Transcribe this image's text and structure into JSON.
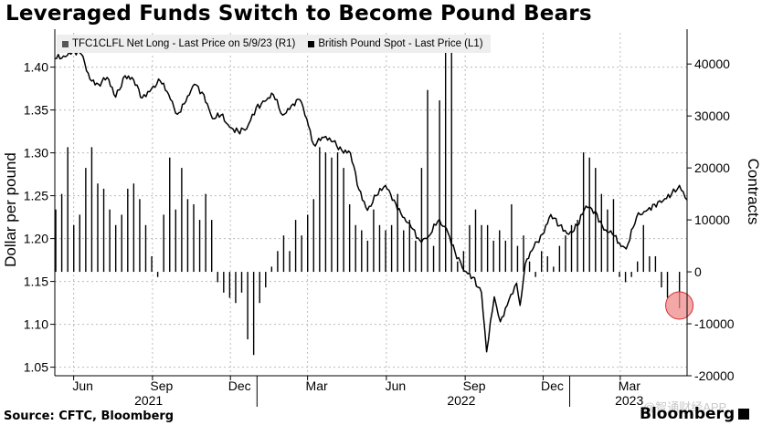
{
  "title": "Leveraged Funds Switch to Become Pound Bears",
  "source": "Source: CFTC, Bloomberg",
  "logo": "Bloomberg",
  "watermark": "@智通财经APP",
  "legend": [
    {
      "label": "TFC1CLFL Net Long - Last Price on 5/9/23 (R1)",
      "color": "#555555"
    },
    {
      "label": "British Pound Spot - Last Price (L1)",
      "color": "#000000"
    }
  ],
  "colors": {
    "line": "#000000",
    "bars": "#000000",
    "grid": "#bbbbbb",
    "highlight": "#f08a8a",
    "highlight_stroke": "#d03030"
  },
  "chart_data": {
    "type": "line",
    "ylabel": "Dollar per pound",
    "y2label": "Contracts",
    "ylim": [
      1.04,
      1.44
    ],
    "y2lim": [
      -20000,
      46000
    ],
    "yticks": [
      "1.05",
      "1.10",
      "1.15",
      "1.20",
      "1.25",
      "1.30",
      "1.35",
      "1.40"
    ],
    "y2ticks": [
      "-20000",
      "-10000",
      "0",
      "10000",
      "20000",
      "30000",
      "40000"
    ],
    "x_month_ticks": [
      "Jun",
      "Sep",
      "Dec",
      "Mar",
      "Jun",
      "Sep",
      "Dec",
      "Mar"
    ],
    "x_year_labels": [
      "2021",
      "2022",
      "2023"
    ],
    "grid": true,
    "legend_position": "top-left",
    "x_start": "2021-05-10",
    "x_end": "2023-05-18",
    "series": [
      {
        "name": "British Pound Spot - Last Price (L1)",
        "axis": "left",
        "kind": "line",
        "points": [
          [
            "2021-05-10",
            1.41
          ],
          [
            "2021-05-20",
            1.413
          ],
          [
            "2021-05-31",
            1.418
          ],
          [
            "2021-06-10",
            1.415
          ],
          [
            "2021-06-20",
            1.386
          ],
          [
            "2021-06-30",
            1.38
          ],
          [
            "2021-07-10",
            1.388
          ],
          [
            "2021-07-20",
            1.365
          ],
          [
            "2021-07-31",
            1.39
          ],
          [
            "2021-08-10",
            1.385
          ],
          [
            "2021-08-20",
            1.364
          ],
          [
            "2021-08-31",
            1.375
          ],
          [
            "2021-09-10",
            1.384
          ],
          [
            "2021-09-20",
            1.368
          ],
          [
            "2021-09-30",
            1.345
          ],
          [
            "2021-10-10",
            1.36
          ],
          [
            "2021-10-20",
            1.38
          ],
          [
            "2021-10-31",
            1.368
          ],
          [
            "2021-11-10",
            1.34
          ],
          [
            "2021-11-20",
            1.344
          ],
          [
            "2021-11-30",
            1.33
          ],
          [
            "2021-12-10",
            1.325
          ],
          [
            "2021-12-20",
            1.328
          ],
          [
            "2021-12-31",
            1.353
          ],
          [
            "2022-01-10",
            1.36
          ],
          [
            "2022-01-20",
            1.368
          ],
          [
            "2022-01-31",
            1.344
          ],
          [
            "2022-02-10",
            1.355
          ],
          [
            "2022-02-20",
            1.362
          ],
          [
            "2022-02-28",
            1.34
          ],
          [
            "2022-03-08",
            1.31
          ],
          [
            "2022-03-20",
            1.318
          ],
          [
            "2022-03-31",
            1.313
          ],
          [
            "2022-04-10",
            1.303
          ],
          [
            "2022-04-20",
            1.3
          ],
          [
            "2022-04-30",
            1.257
          ],
          [
            "2022-05-10",
            1.233
          ],
          [
            "2022-05-20",
            1.25
          ],
          [
            "2022-05-31",
            1.262
          ],
          [
            "2022-06-10",
            1.245
          ],
          [
            "2022-06-20",
            1.225
          ],
          [
            "2022-06-30",
            1.213
          ],
          [
            "2022-07-10",
            1.198
          ],
          [
            "2022-07-20",
            1.202
          ],
          [
            "2022-07-31",
            1.22
          ],
          [
            "2022-08-10",
            1.212
          ],
          [
            "2022-08-20",
            1.185
          ],
          [
            "2022-08-31",
            1.162
          ],
          [
            "2022-09-10",
            1.155
          ],
          [
            "2022-09-20",
            1.137
          ],
          [
            "2022-09-26",
            1.068
          ],
          [
            "2022-10-05",
            1.132
          ],
          [
            "2022-10-12",
            1.103
          ],
          [
            "2022-10-20",
            1.122
          ],
          [
            "2022-10-31",
            1.148
          ],
          [
            "2022-11-04",
            1.122
          ],
          [
            "2022-11-10",
            1.17
          ],
          [
            "2022-11-20",
            1.19
          ],
          [
            "2022-11-30",
            1.205
          ],
          [
            "2022-12-10",
            1.228
          ],
          [
            "2022-12-20",
            1.215
          ],
          [
            "2022-12-31",
            1.205
          ],
          [
            "2023-01-10",
            1.215
          ],
          [
            "2023-01-20",
            1.238
          ],
          [
            "2023-01-31",
            1.232
          ],
          [
            "2023-02-10",
            1.21
          ],
          [
            "2023-02-20",
            1.205
          ],
          [
            "2023-02-28",
            1.195
          ],
          [
            "2023-03-08",
            1.188
          ],
          [
            "2023-03-20",
            1.225
          ],
          [
            "2023-03-31",
            1.232
          ],
          [
            "2023-04-10",
            1.24
          ],
          [
            "2023-04-20",
            1.244
          ],
          [
            "2023-04-30",
            1.252
          ],
          [
            "2023-05-09",
            1.262
          ],
          [
            "2023-05-18",
            1.245
          ]
        ]
      },
      {
        "name": "TFC1CLFL Net Long - Last Price on 5/9/23 (R1)",
        "axis": "right",
        "kind": "bar",
        "points": [
          [
            "2021-05-11",
            12000
          ],
          [
            "2021-05-18",
            15000
          ],
          [
            "2021-05-25",
            24000
          ],
          [
            "2021-06-01",
            9000
          ],
          [
            "2021-06-08",
            11000
          ],
          [
            "2021-06-15",
            20000
          ],
          [
            "2021-06-22",
            24000
          ],
          [
            "2021-06-29",
            17000
          ],
          [
            "2021-07-06",
            16000
          ],
          [
            "2021-07-13",
            12000
          ],
          [
            "2021-07-20",
            9000
          ],
          [
            "2021-07-27",
            11000
          ],
          [
            "2021-08-03",
            16000
          ],
          [
            "2021-08-10",
            17000
          ],
          [
            "2021-08-17",
            14000
          ],
          [
            "2021-08-24",
            9000
          ],
          [
            "2021-08-31",
            3000
          ],
          [
            "2021-09-07",
            -1000
          ],
          [
            "2021-09-14",
            11000
          ],
          [
            "2021-09-21",
            22000
          ],
          [
            "2021-09-28",
            12000
          ],
          [
            "2021-10-05",
            20000
          ],
          [
            "2021-10-12",
            14000
          ],
          [
            "2021-10-19",
            13000
          ],
          [
            "2021-10-26",
            10000
          ],
          [
            "2021-11-02",
            15000
          ],
          [
            "2021-11-09",
            10000
          ],
          [
            "2021-11-16",
            -2000
          ],
          [
            "2021-11-23",
            -4000
          ],
          [
            "2021-11-30",
            -5000
          ],
          [
            "2021-12-07",
            -6000
          ],
          [
            "2021-12-14",
            -4000
          ],
          [
            "2021-12-21",
            -13000
          ],
          [
            "2021-12-28",
            -16000
          ],
          [
            "2022-01-04",
            -6000
          ],
          [
            "2022-01-11",
            -3000
          ],
          [
            "2022-01-18",
            1000
          ],
          [
            "2022-01-25",
            4000
          ],
          [
            "2022-02-01",
            7000
          ],
          [
            "2022-02-08",
            4000
          ],
          [
            "2022-02-15",
            10000
          ],
          [
            "2022-02-22",
            7000
          ],
          [
            "2022-03-01",
            11000
          ],
          [
            "2022-03-08",
            14000
          ],
          [
            "2022-03-15",
            24000
          ],
          [
            "2022-03-22",
            23000
          ],
          [
            "2022-03-29",
            22000
          ],
          [
            "2022-04-05",
            23000
          ],
          [
            "2022-04-12",
            20000
          ],
          [
            "2022-04-19",
            13000
          ],
          [
            "2022-04-26",
            9000
          ],
          [
            "2022-05-03",
            8000
          ],
          [
            "2022-05-10",
            6000
          ],
          [
            "2022-05-17",
            12000
          ],
          [
            "2022-05-24",
            9000
          ],
          [
            "2022-05-31",
            8000
          ],
          [
            "2022-06-07",
            9000
          ],
          [
            "2022-06-14",
            15000
          ],
          [
            "2022-06-21",
            8000
          ],
          [
            "2022-06-28",
            10000
          ],
          [
            "2022-07-05",
            6000
          ],
          [
            "2022-07-12",
            20000
          ],
          [
            "2022-07-19",
            35000
          ],
          [
            "2022-07-26",
            5000
          ],
          [
            "2022-08-02",
            33000
          ],
          [
            "2022-08-09",
            45000
          ],
          [
            "2022-08-16",
            44000
          ],
          [
            "2022-08-23",
            2000
          ],
          [
            "2022-08-30",
            4000
          ],
          [
            "2022-09-06",
            9000
          ],
          [
            "2022-09-13",
            12000
          ],
          [
            "2022-09-20",
            9000
          ],
          [
            "2022-09-27",
            9000
          ],
          [
            "2022-10-04",
            6000
          ],
          [
            "2022-10-11",
            8000
          ],
          [
            "2022-10-18",
            6000
          ],
          [
            "2022-10-25",
            13000
          ],
          [
            "2022-11-01",
            5000
          ],
          [
            "2022-11-08",
            7000
          ],
          [
            "2022-11-15",
            2000
          ],
          [
            "2022-11-22",
            -1000
          ],
          [
            "2022-11-29",
            4000
          ],
          [
            "2022-12-06",
            3000
          ],
          [
            "2022-12-13",
            1000
          ],
          [
            "2022-12-20",
            5000
          ],
          [
            "2022-12-27",
            7000
          ],
          [
            "2023-01-03",
            9000
          ],
          [
            "2023-01-10",
            10000
          ],
          [
            "2023-01-17",
            23000
          ],
          [
            "2023-01-24",
            22000
          ],
          [
            "2023-01-31",
            20000
          ],
          [
            "2023-02-07",
            15000
          ],
          [
            "2023-02-14",
            12000
          ],
          [
            "2023-02-21",
            14000
          ],
          [
            "2023-02-28",
            -1000
          ],
          [
            "2023-03-07",
            -2000
          ],
          [
            "2023-03-14",
            -1000
          ],
          [
            "2023-03-21",
            2000
          ],
          [
            "2023-03-28",
            9000
          ],
          [
            "2023-04-04",
            3000
          ],
          [
            "2023-04-11",
            3000
          ],
          [
            "2023-04-18",
            -3000
          ],
          [
            "2023-04-25",
            -5000
          ],
          [
            "2023-05-09",
            -7000
          ]
        ]
      }
    ],
    "annotations": [
      {
        "kind": "circle-marker",
        "date": "2023-05-09",
        "value": -7000,
        "axis": "right"
      }
    ]
  }
}
